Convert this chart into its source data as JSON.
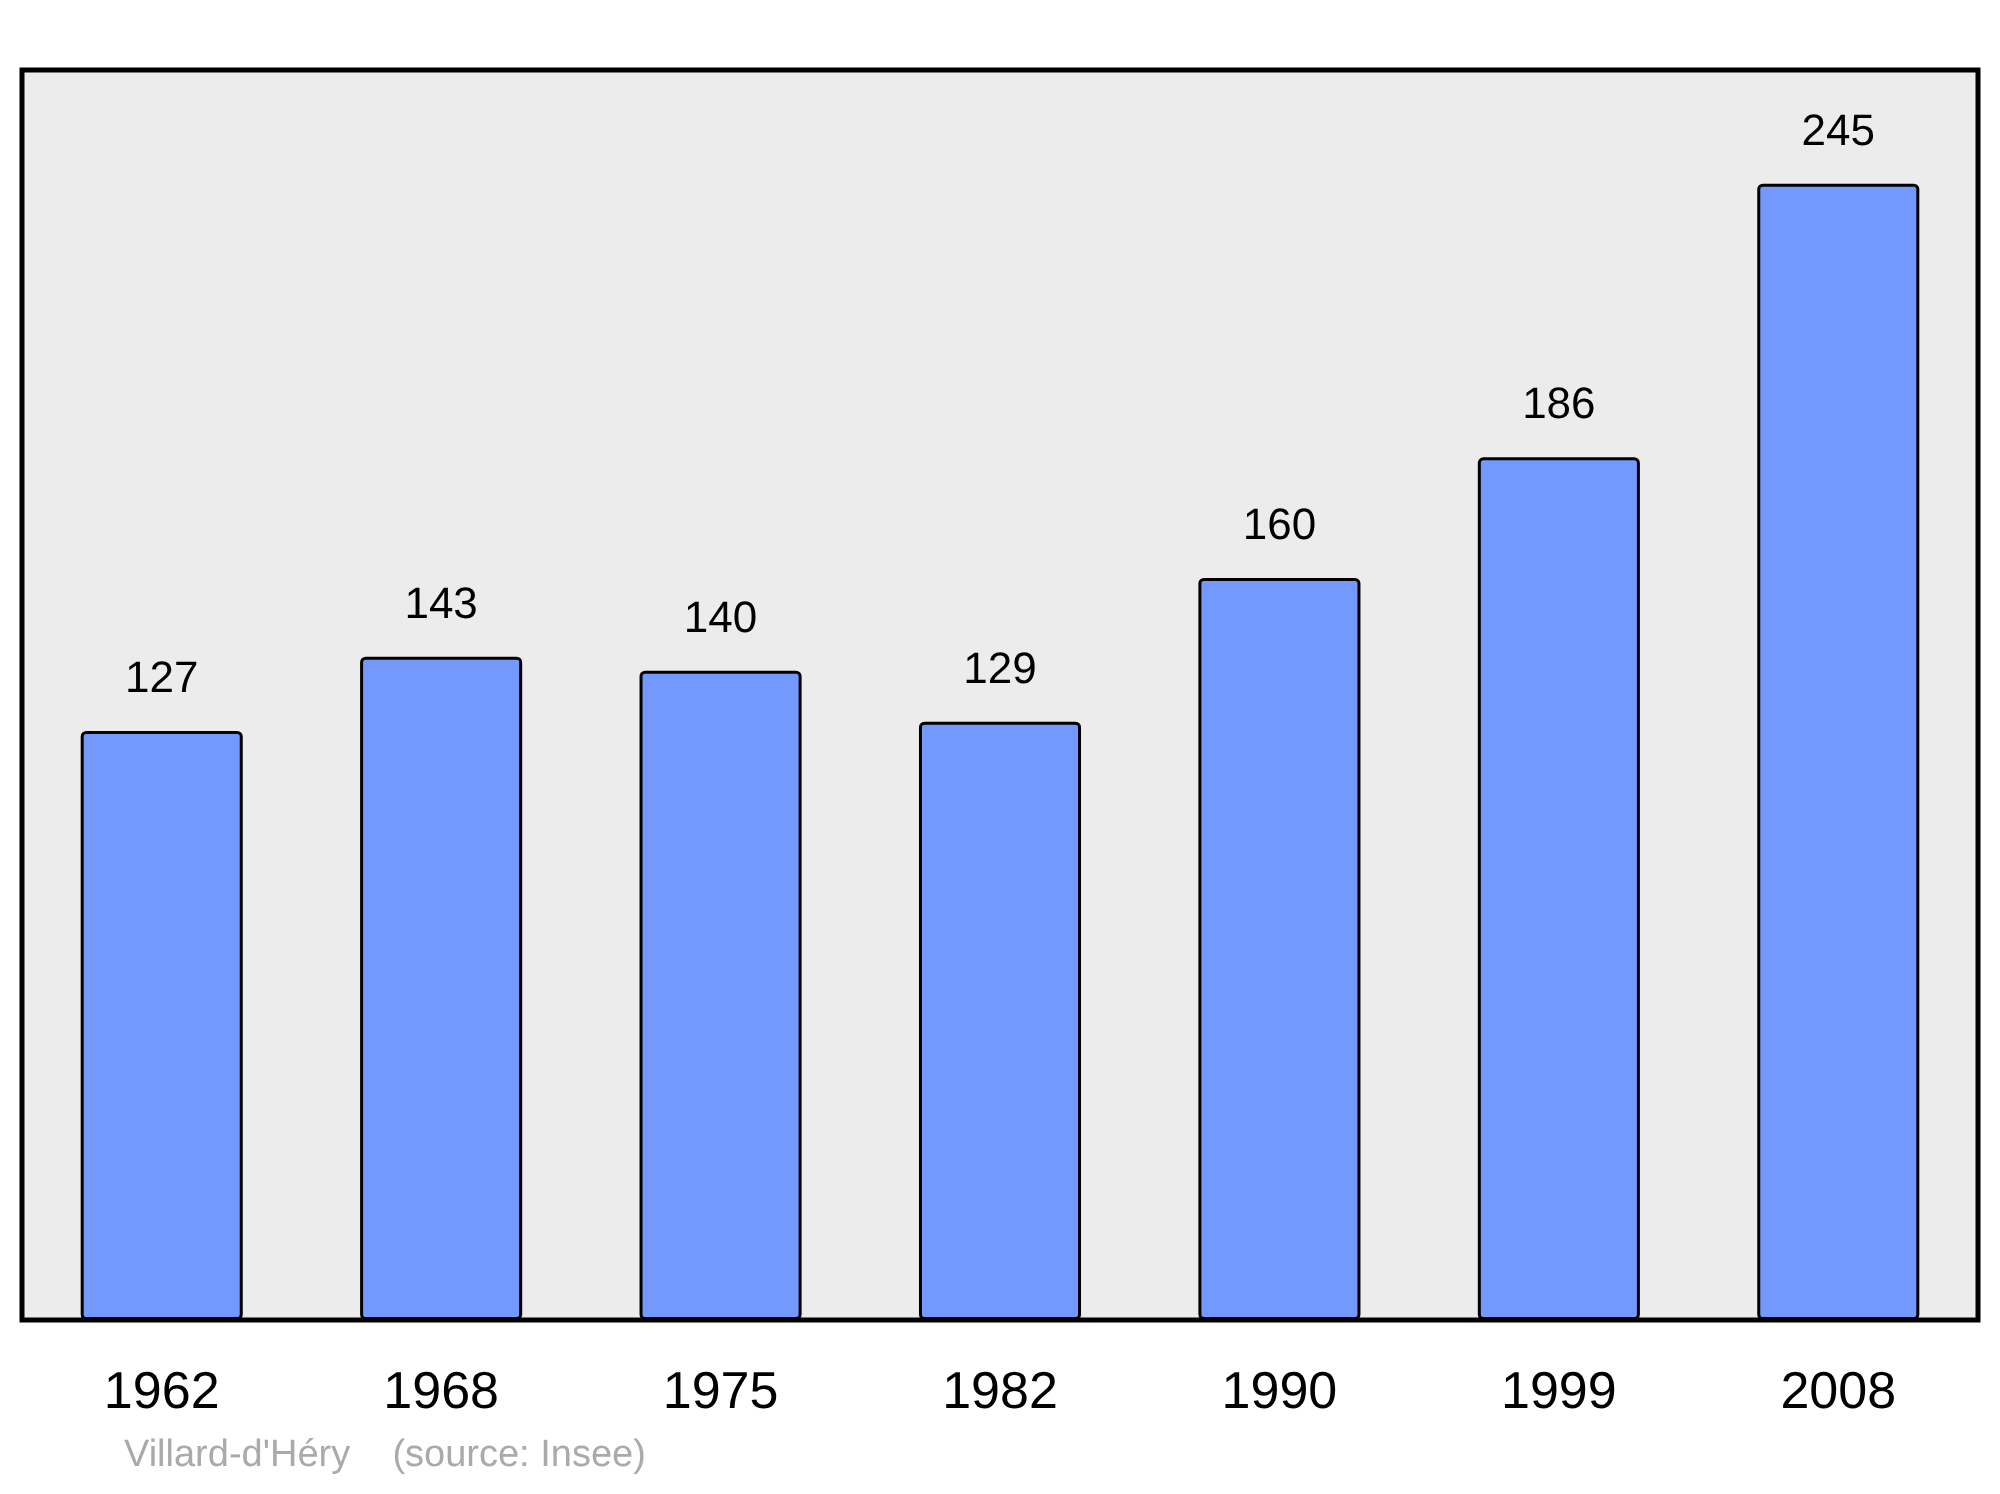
{
  "chart_data": {
    "type": "bar",
    "categories": [
      "1962",
      "1968",
      "1975",
      "1982",
      "1990",
      "1999",
      "2008"
    ],
    "values": [
      127,
      143,
      140,
      129,
      160,
      186,
      245
    ],
    "color": "#7399ff",
    "data_labels": true,
    "annotations": [
      "Villard-d'Héry    (source: Insee)"
    ]
  }
}
